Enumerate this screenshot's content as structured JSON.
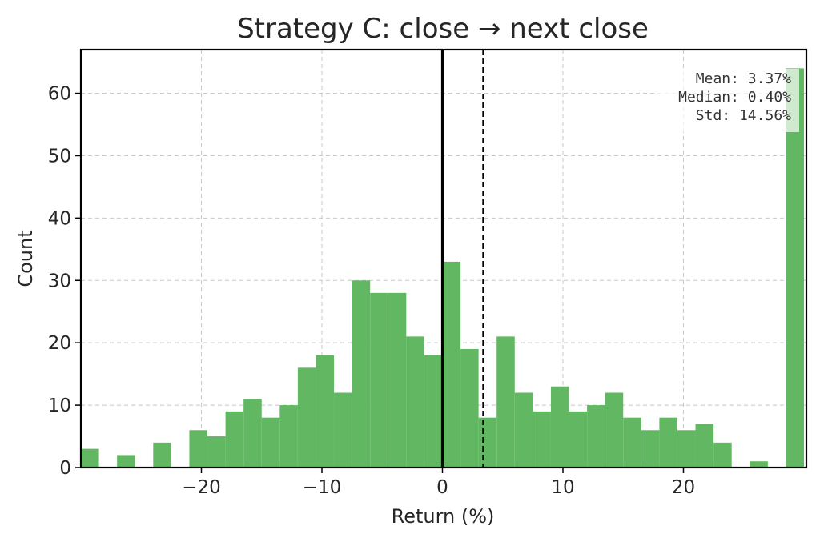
{
  "chart_data": {
    "type": "bar",
    "title": "Strategy C: close → next close",
    "xlabel": "Return (%)",
    "ylabel": "Count",
    "xlim": [
      -30,
      30.2
    ],
    "ylim": [
      0,
      67
    ],
    "xticks": [
      -20,
      -10,
      0,
      10,
      20
    ],
    "xtick_labels": [
      "−20",
      "−10",
      "0",
      "10",
      "20"
    ],
    "yticks": [
      0,
      10,
      20,
      30,
      40,
      50,
      60
    ],
    "grid": true,
    "bin_width": 1.5,
    "bins": [
      {
        "x0": -30.0,
        "count": 3
      },
      {
        "x0": -28.5,
        "count": 0
      },
      {
        "x0": -27.0,
        "count": 2
      },
      {
        "x0": -25.5,
        "count": 0
      },
      {
        "x0": -24.0,
        "count": 4
      },
      {
        "x0": -22.5,
        "count": 0
      },
      {
        "x0": -21.0,
        "count": 6
      },
      {
        "x0": -19.5,
        "count": 5
      },
      {
        "x0": -18.0,
        "count": 9
      },
      {
        "x0": -16.5,
        "count": 11
      },
      {
        "x0": -15.0,
        "count": 8
      },
      {
        "x0": -13.5,
        "count": 10
      },
      {
        "x0": -12.0,
        "count": 16
      },
      {
        "x0": -10.5,
        "count": 18
      },
      {
        "x0": -9.0,
        "count": 12
      },
      {
        "x0": -7.5,
        "count": 30
      },
      {
        "x0": -6.0,
        "count": 28
      },
      {
        "x0": -4.5,
        "count": 28
      },
      {
        "x0": -3.0,
        "count": 21
      },
      {
        "x0": -1.5,
        "count": 18
      },
      {
        "x0": 0.0,
        "count": 33
      },
      {
        "x0": 1.5,
        "count": 19
      },
      {
        "x0": 3.0,
        "count": 8
      },
      {
        "x0": 4.5,
        "count": 21
      },
      {
        "x0": 6.0,
        "count": 12
      },
      {
        "x0": 7.5,
        "count": 9
      },
      {
        "x0": 9.0,
        "count": 13
      },
      {
        "x0": 10.5,
        "count": 9
      },
      {
        "x0": 12.0,
        "count": 10
      },
      {
        "x0": 13.5,
        "count": 12
      },
      {
        "x0": 15.0,
        "count": 8
      },
      {
        "x0": 16.5,
        "count": 6
      },
      {
        "x0": 18.0,
        "count": 8
      },
      {
        "x0": 19.5,
        "count": 6
      },
      {
        "x0": 21.0,
        "count": 7
      },
      {
        "x0": 22.5,
        "count": 4
      },
      {
        "x0": 24.0,
        "count": 0
      },
      {
        "x0": 25.5,
        "count": 1
      },
      {
        "x0": 27.0,
        "count": 0
      },
      {
        "x0": 28.5,
        "count": 64
      }
    ],
    "zero_line": 0,
    "mean_line": 3.37,
    "stats_lines": [
      "Mean:  3.37%",
      "Median: 0.40%",
      "Std:   14.56%"
    ],
    "colors": {
      "bar": "#62b862",
      "grid": "#c8c8c8",
      "axis": "#000000",
      "text": "#262626"
    }
  }
}
